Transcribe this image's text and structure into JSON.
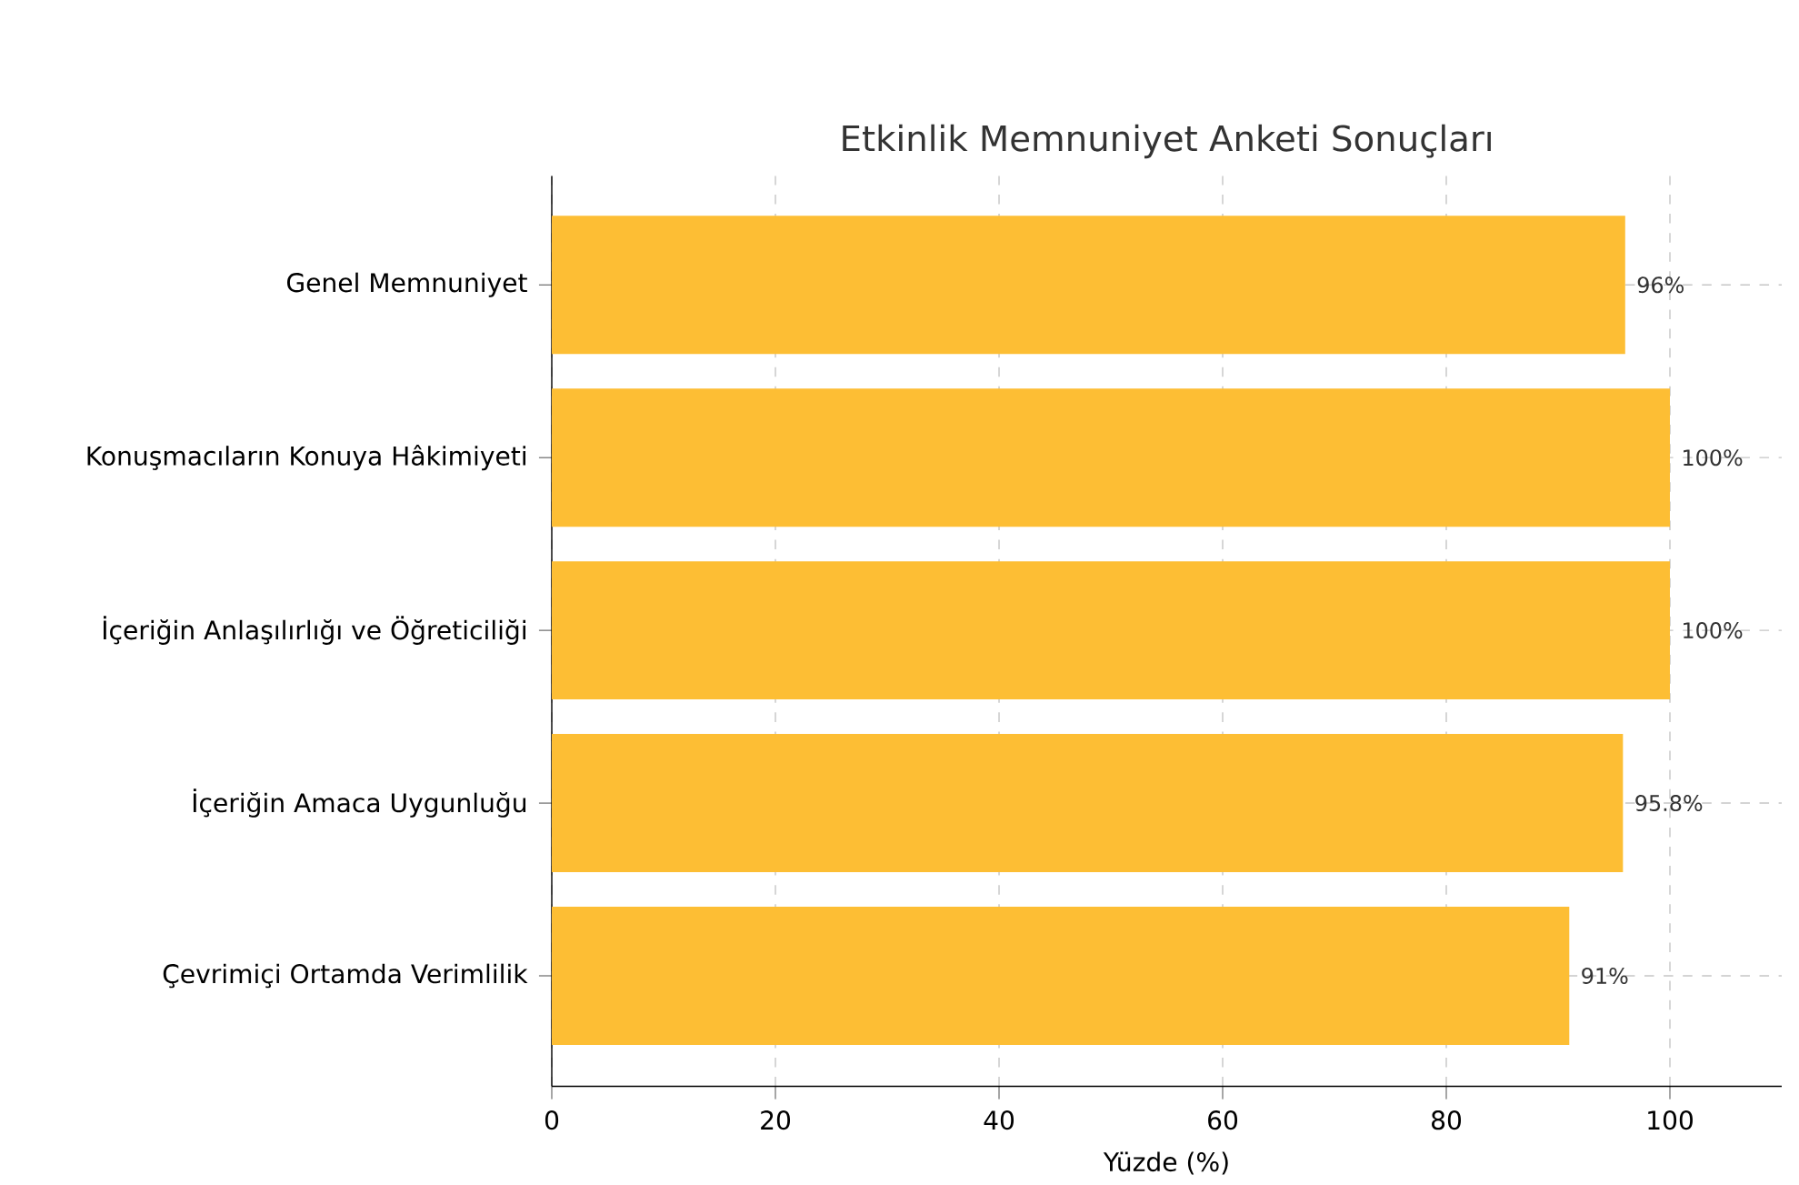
{
  "chart_data": {
    "type": "bar",
    "orientation": "horizontal",
    "title": "Etkinlik Memnuniyet Anketi Sonuçları",
    "xlabel": "Yüzde (%)",
    "categories": [
      "Genel Memnuniyet",
      "Konuşmacıların Konuya Hâkimiyeti",
      "İçeriğin Anlaşılırlığı ve Öğreticiliği",
      "İçeriğin Amaca Uygunluğu",
      "Çevrimiçi Ortamda Verimlilik"
    ],
    "values": [
      96,
      100,
      100,
      95.8,
      91
    ],
    "value_labels": [
      "96%",
      "100%",
      "100%",
      "95.8%",
      "91%"
    ],
    "color": "#fdbe34",
    "xlim": [
      0,
      110
    ],
    "xticks": [
      0,
      20,
      40,
      60,
      80,
      100
    ],
    "grid": true
  }
}
